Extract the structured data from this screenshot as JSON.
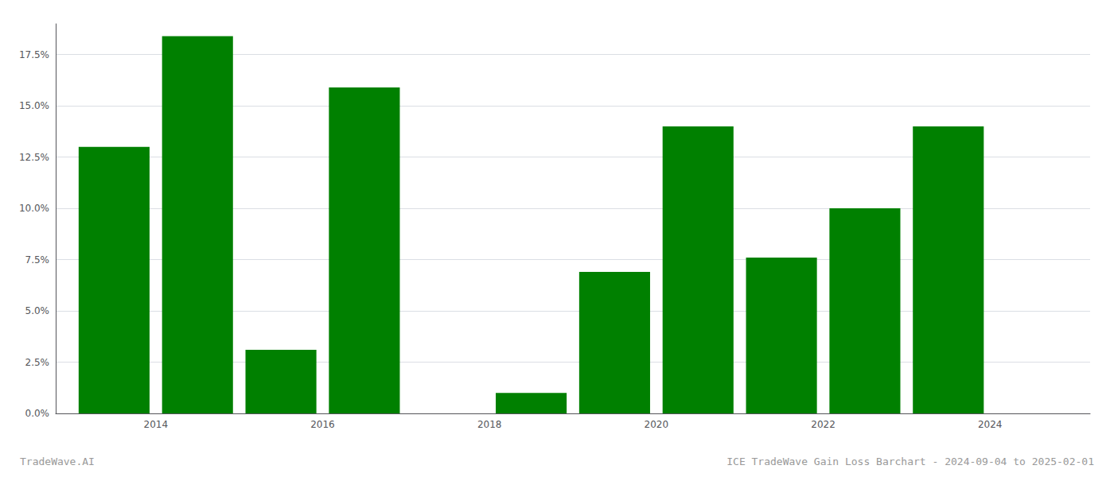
{
  "chart_data": {
    "type": "bar",
    "title": "ICE TradeWave Gain Loss Barchart - 2024-09-04 to 2025-02-01",
    "annotations": [
      "TradeWave.AI"
    ],
    "x": [
      2013,
      2014,
      2015,
      2016,
      2017,
      2018,
      2019,
      2020,
      2021,
      2022,
      2023,
      2024
    ],
    "values": [
      0.13,
      0.184,
      0.031,
      0.159,
      0.0,
      0.01,
      0.069,
      0.14,
      0.076,
      0.1,
      0.14,
      0.0
    ],
    "color": "#008000",
    "xlim": [
      2012.3,
      2024.7
    ],
    "xticks": [
      {
        "value": 2013.5,
        "label": "2014"
      },
      {
        "value": 2015.5,
        "label": "2016"
      },
      {
        "value": 2017.5,
        "label": "2018"
      },
      {
        "value": 2019.5,
        "label": "2020"
      },
      {
        "value": 2021.5,
        "label": "2022"
      },
      {
        "value": 2023.5,
        "label": "2024"
      }
    ],
    "ylim": [
      0,
      0.19
    ],
    "yticks": [
      {
        "value": 0.0,
        "label": "0.0%"
      },
      {
        "value": 0.025,
        "label": "2.5%"
      },
      {
        "value": 0.05,
        "label": "5.0%"
      },
      {
        "value": 0.075,
        "label": "7.5%"
      },
      {
        "value": 0.1,
        "label": "10.0%"
      },
      {
        "value": 0.125,
        "label": "12.5%"
      },
      {
        "value": 0.15,
        "label": "15.0%"
      },
      {
        "value": 0.175,
        "label": "17.5%"
      }
    ],
    "grid": true
  }
}
